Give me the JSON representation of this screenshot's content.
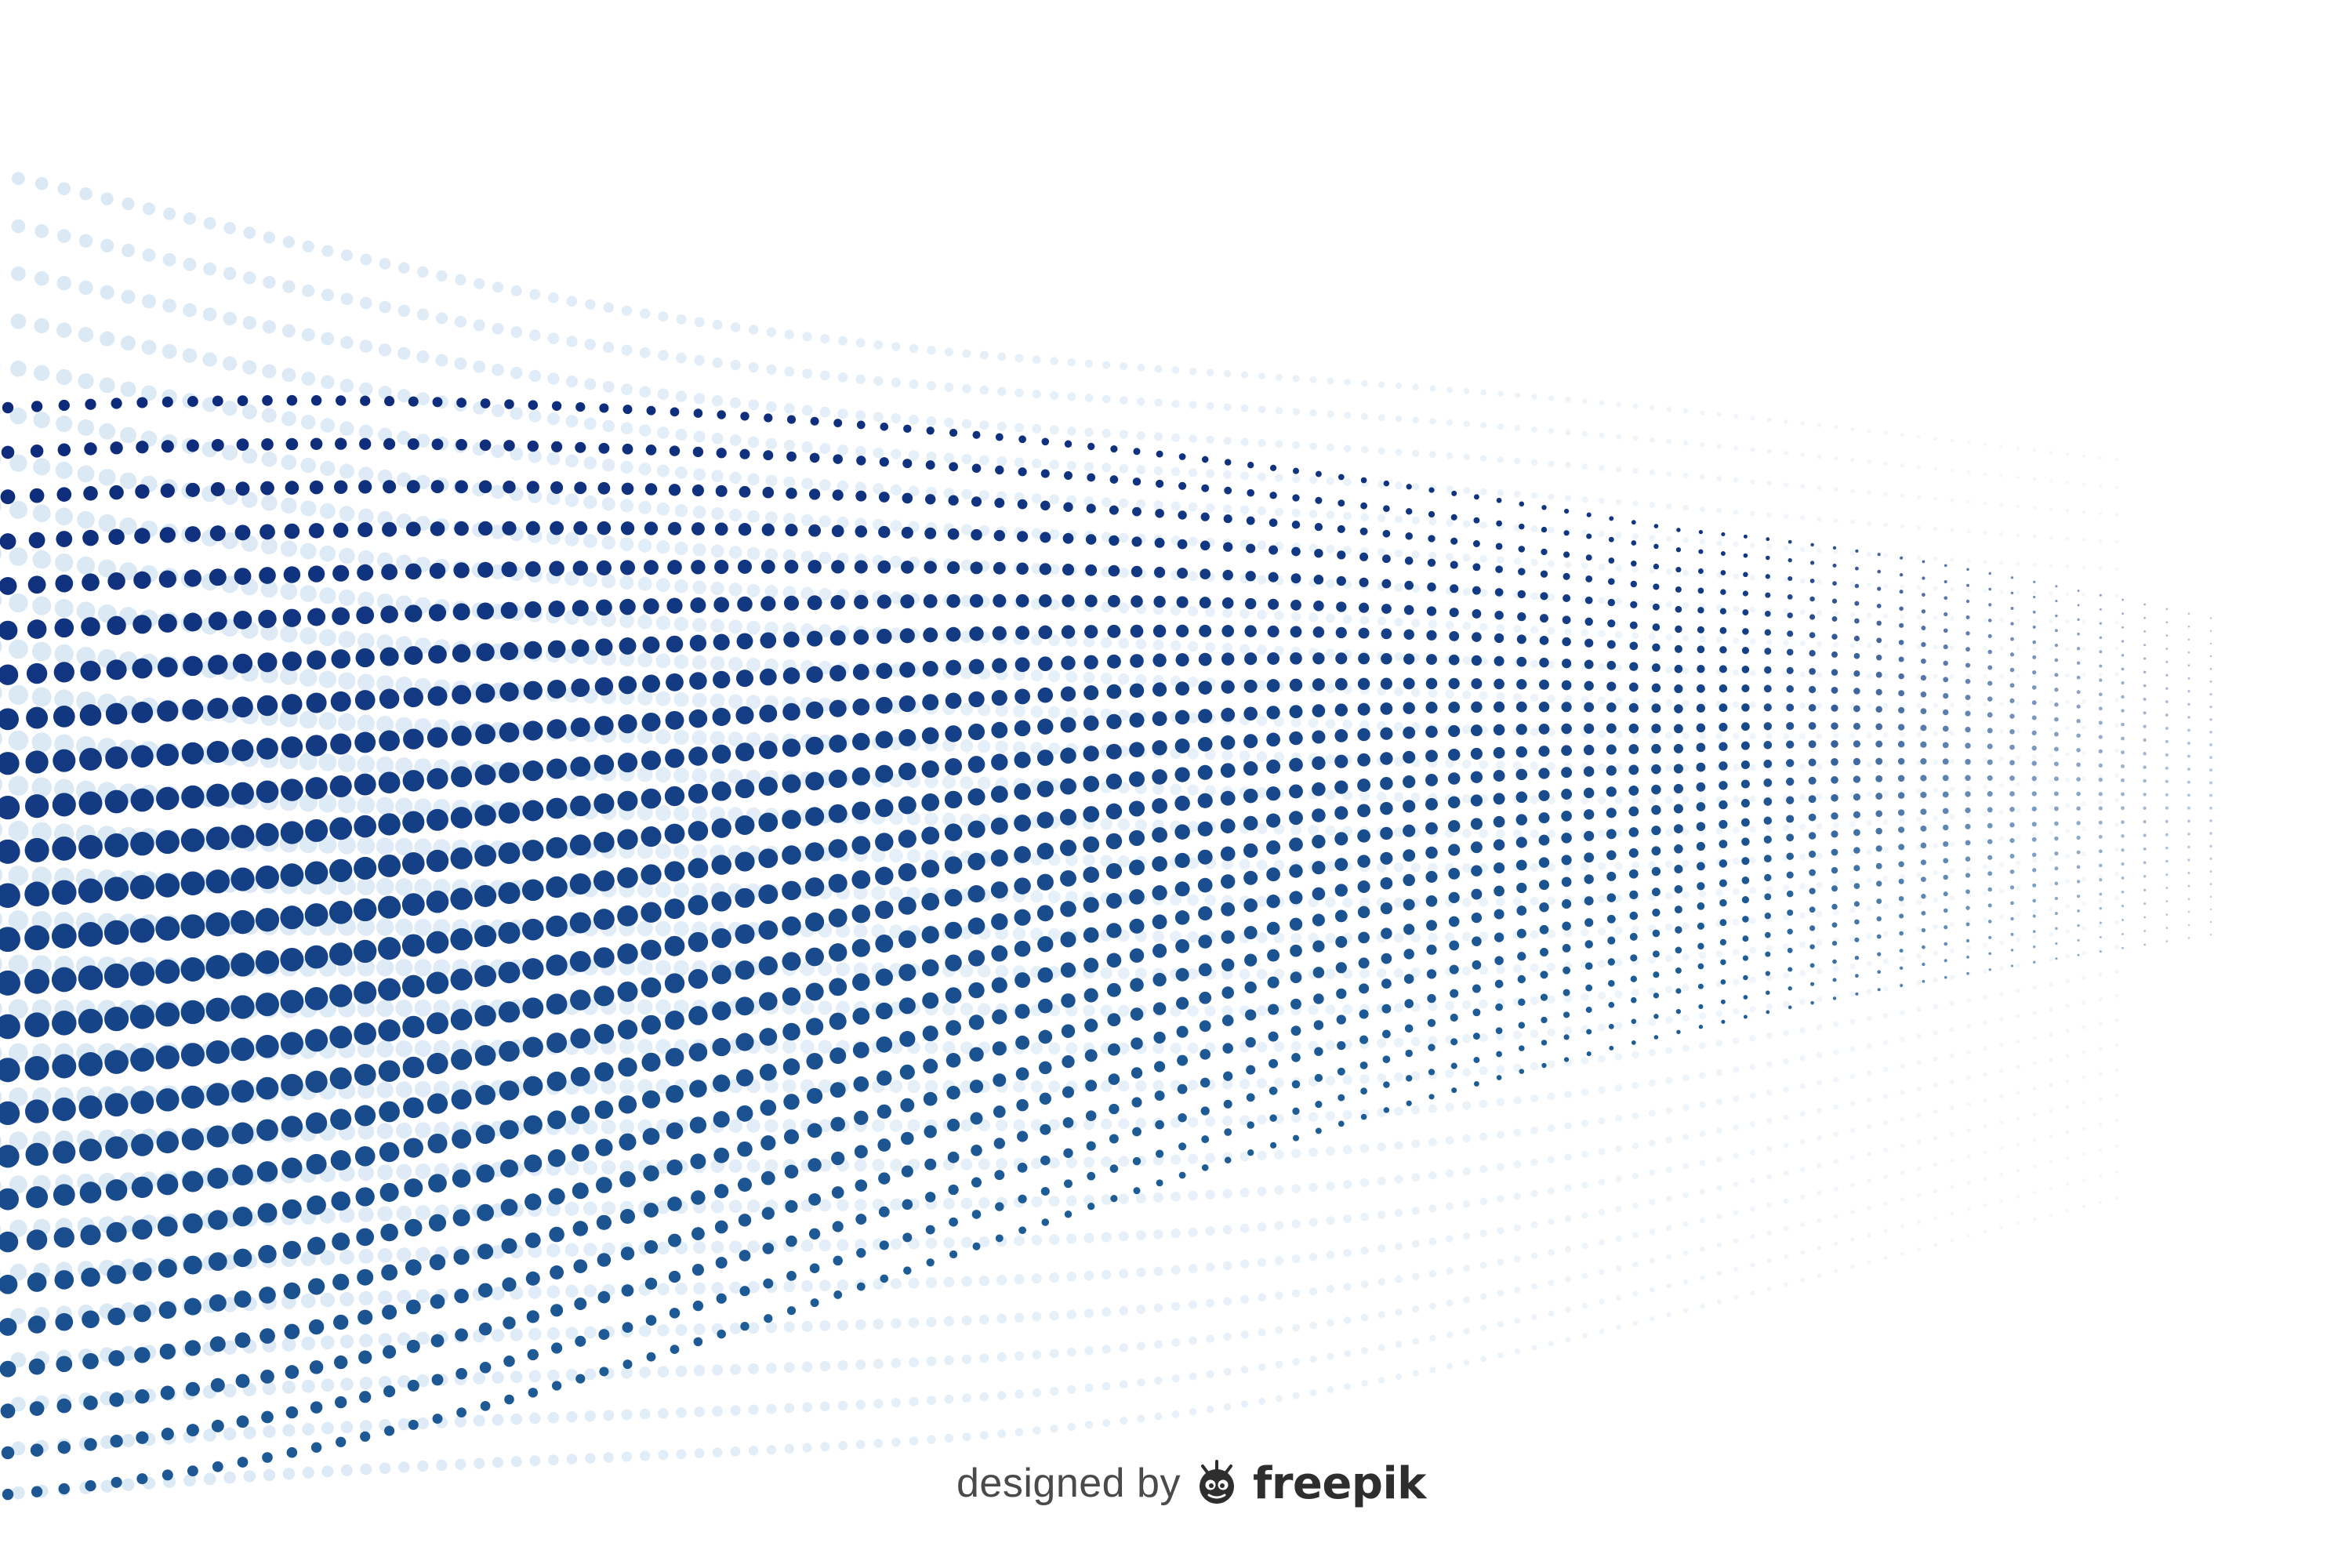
{
  "watermark": {
    "prefix": "designed by",
    "brand": "freepik",
    "logo_icon": "freepik-logo-icon"
  },
  "colors": {
    "background": "#ffffff",
    "dot_dark": "#0d2a7a",
    "dot_mid": "#1e5c96",
    "dot_light": "#d6e6f4",
    "watermark_text": "#4a4a4a"
  }
}
